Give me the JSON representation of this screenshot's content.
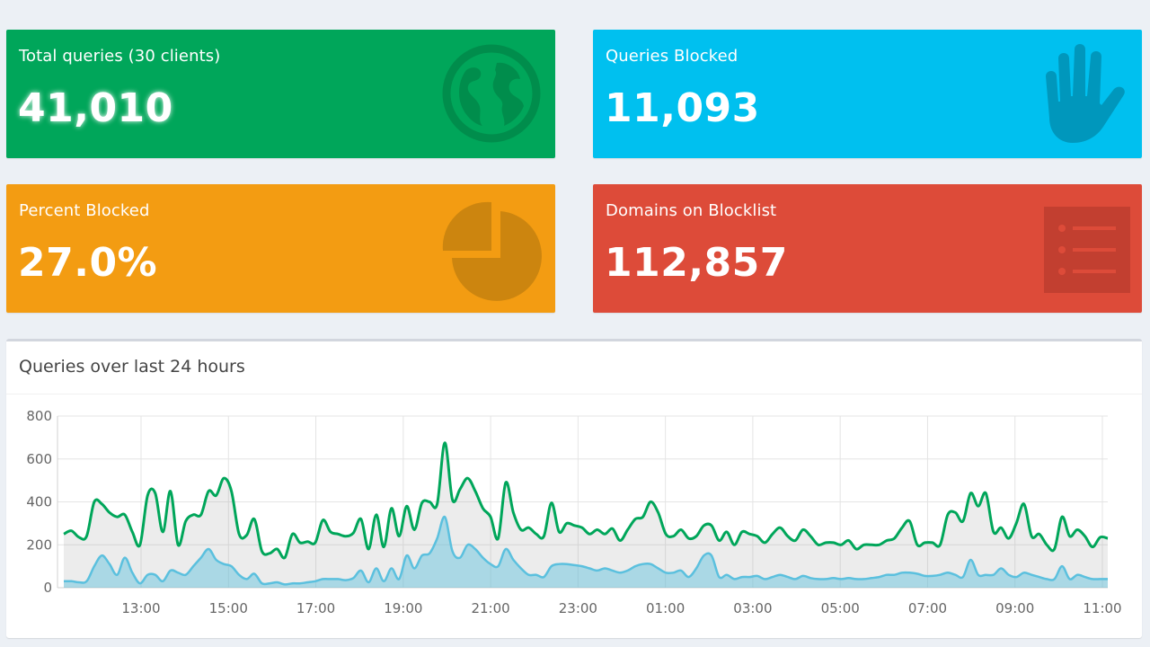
{
  "stats": {
    "total": {
      "label": "Total queries (30 clients)",
      "value": "41,010",
      "color": "#00a65a",
      "icon": "globe-icon"
    },
    "blocked": {
      "label": "Queries Blocked",
      "value": "11,093",
      "color": "#00c0ef",
      "icon": "hand-icon"
    },
    "percent": {
      "label": "Percent Blocked",
      "value": "27.0%",
      "color": "#f39c12",
      "icon": "pie-chart-icon"
    },
    "domains": {
      "label": "Domains on Blocklist",
      "value": "112,857",
      "color": "#dd4b39",
      "icon": "list-icon"
    }
  },
  "panel": {
    "title": "Queries over last 24 hours"
  },
  "chart_data": {
    "type": "area",
    "title": "Queries over last 24 hours",
    "x_ticks": [
      "13:00",
      "15:00",
      "17:00",
      "19:00",
      "21:00",
      "23:00",
      "01:00",
      "03:00",
      "05:00",
      "07:00",
      "09:00",
      "11:00"
    ],
    "y_ticks": [
      0,
      200,
      400,
      600,
      800
    ],
    "ylim": [
      0,
      800
    ],
    "grid": true,
    "series": [
      {
        "color": "#00a65a",
        "values": [
          250,
          265,
          235,
          240,
          400,
          390,
          350,
          330,
          340,
          260,
          200,
          430,
          440,
          260,
          450,
          200,
          310,
          340,
          340,
          450,
          430,
          510,
          450,
          250,
          245,
          320,
          170,
          160,
          180,
          140,
          250,
          210,
          215,
          210,
          315,
          260,
          250,
          240,
          255,
          320,
          180,
          340,
          190,
          370,
          240,
          380,
          270,
          395,
          400,
          390,
          675,
          410,
          460,
          510,
          450,
          370,
          330,
          230,
          490,
          350,
          270,
          280,
          250,
          240,
          395,
          260,
          300,
          290,
          280,
          250,
          270,
          250,
          275,
          220,
          270,
          320,
          330,
          400,
          350,
          250,
          240,
          270,
          230,
          240,
          290,
          290,
          220,
          260,
          200,
          260,
          250,
          240,
          210,
          250,
          280,
          240,
          220,
          270,
          240,
          200,
          210,
          210,
          200,
          220,
          180,
          200,
          200,
          200,
          220,
          230,
          280,
          310,
          200,
          210,
          210,
          200,
          340,
          350,
          310,
          440,
          380,
          440,
          260,
          280,
          230,
          300,
          390,
          240,
          250,
          200,
          180,
          330,
          240,
          270,
          240,
          190,
          235,
          230
        ],
        "fill": "rgba(150,150,150,0.18)"
      },
      {
        "color": "#5bc0de",
        "values": [
          30,
          30,
          25,
          30,
          100,
          150,
          110,
          60,
          140,
          70,
          20,
          60,
          60,
          30,
          80,
          70,
          60,
          100,
          140,
          180,
          130,
          110,
          100,
          60,
          40,
          65,
          20,
          20,
          25,
          15,
          20,
          20,
          25,
          30,
          40,
          40,
          40,
          35,
          45,
          80,
          25,
          90,
          30,
          90,
          40,
          150,
          90,
          150,
          160,
          230,
          330,
          170,
          140,
          200,
          180,
          140,
          110,
          100,
          180,
          130,
          90,
          60,
          60,
          50,
          100,
          110,
          110,
          105,
          100,
          90,
          80,
          90,
          80,
          70,
          80,
          100,
          110,
          110,
          90,
          70,
          70,
          80,
          50,
          90,
          150,
          150,
          50,
          60,
          40,
          50,
          50,
          55,
          40,
          50,
          60,
          50,
          40,
          55,
          45,
          40,
          40,
          45,
          40,
          45,
          40,
          40,
          45,
          50,
          60,
          60,
          70,
          70,
          65,
          55,
          55,
          60,
          70,
          60,
          50,
          130,
          60,
          60,
          60,
          90,
          60,
          50,
          70,
          60,
          50,
          40,
          40,
          100,
          40,
          60,
          50,
          40,
          40,
          40
        ],
        "fill": "rgba(91,192,222,0.45)"
      }
    ]
  }
}
